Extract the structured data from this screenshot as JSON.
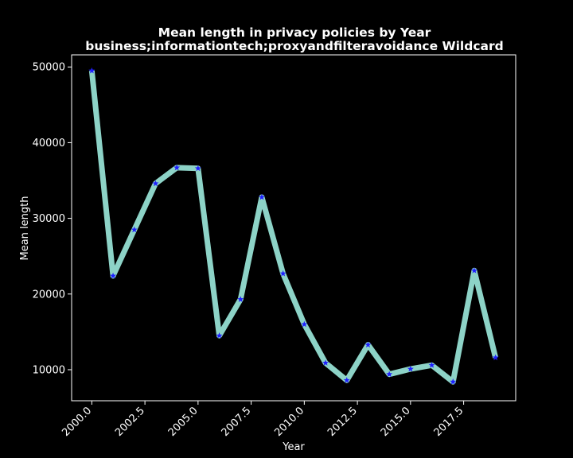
{
  "chart_data": {
    "type": "line",
    "title": "Mean length in privacy policies by Year",
    "subtitle": "business;informationtech;proxyandfilteravoidance Wildcard",
    "xlabel": "Year",
    "ylabel": "Mean length",
    "xlim": [
      1999.05,
      2019.95
    ],
    "ylim": [
      5900,
      51600
    ],
    "xticks": [
      "2000.0",
      "2002.5",
      "2005.0",
      "2007.5",
      "2010.0",
      "2012.5",
      "2015.0",
      "2017.5"
    ],
    "yticks": [
      "10000",
      "20000",
      "30000",
      "40000",
      "50000"
    ],
    "grid": false,
    "background": "#000000",
    "line_color": "#8dd3c7",
    "marker_color": "#1f1fff",
    "marker": "star",
    "series": [
      {
        "x": [
          2000,
          2001,
          2002,
          2003,
          2004,
          2005,
          2006,
          2007,
          2008,
          2009,
          2010,
          2011,
          2012,
          2013,
          2014,
          2015,
          2016,
          2017,
          2018,
          2019
        ],
        "values": [
          49500,
          22400,
          28500,
          34600,
          36700,
          36600,
          14500,
          19300,
          32800,
          22700,
          16000,
          10900,
          8600,
          13300,
          9400,
          10100,
          10600,
          8400,
          23100,
          11600
        ]
      }
    ]
  }
}
